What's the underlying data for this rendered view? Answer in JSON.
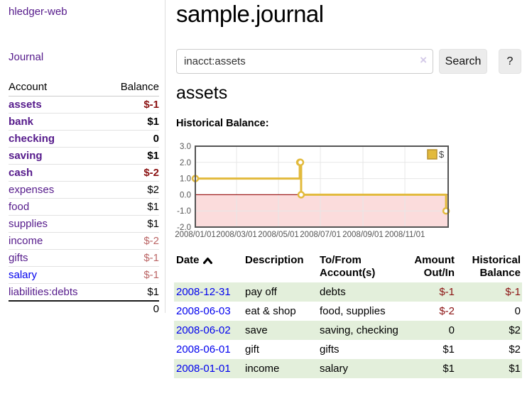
{
  "sidebar": {
    "brand": "hledger-web",
    "journal_link": "Journal",
    "accounts_table": {
      "headers": {
        "account": "Account",
        "balance": "Balance"
      },
      "rows": [
        {
          "account": "assets",
          "balance": "$-1",
          "level": 1,
          "bold": true,
          "balance_class": "neg-strong",
          "link_color": "purple"
        },
        {
          "account": "bank",
          "balance": "$1",
          "level": 2,
          "bold": true,
          "balance_class": "",
          "link_color": "purple"
        },
        {
          "account": "checking",
          "balance": "0",
          "level": 3,
          "bold": true,
          "balance_class": "",
          "link_color": "purple"
        },
        {
          "account": "saving",
          "balance": "$1",
          "level": 3,
          "bold": true,
          "balance_class": "",
          "link_color": "purple"
        },
        {
          "account": "cash",
          "balance": "$-2",
          "level": 2,
          "bold": true,
          "balance_class": "neg-strong",
          "link_color": "purple"
        },
        {
          "account": "expenses",
          "balance": "$2",
          "level": 1,
          "bold": false,
          "balance_class": "",
          "link_color": "purple"
        },
        {
          "account": "food",
          "balance": "$1",
          "level": 2,
          "bold": false,
          "balance_class": "",
          "link_color": "purple"
        },
        {
          "account": "supplies",
          "balance": "$1",
          "level": 2,
          "bold": false,
          "balance_class": "",
          "link_color": "purple"
        },
        {
          "account": "income",
          "balance": "$-2",
          "level": 1,
          "bold": false,
          "balance_class": "neg-soft",
          "link_color": "purple"
        },
        {
          "account": "gifts",
          "balance": "$-1",
          "level": 2,
          "bold": false,
          "balance_class": "neg-soft",
          "link_color": "purple"
        },
        {
          "account": "salary",
          "balance": "$-1",
          "level": 2,
          "bold": false,
          "balance_class": "neg-soft",
          "link_color": "blue"
        },
        {
          "account": "liabilities:debts",
          "balance": "$1",
          "level": 1,
          "bold": false,
          "balance_class": "",
          "link_color": "purple"
        }
      ],
      "total": "0"
    }
  },
  "main": {
    "title": "sample.journal",
    "search": {
      "value": "inacct:assets",
      "clear_icon": "×",
      "button": "Search",
      "help_button": "?"
    },
    "account_heading": "assets",
    "chart_label": "Historical Balance:"
  },
  "register": {
    "headers": {
      "date": "Date",
      "description": "Description",
      "tofrom1": "To/From",
      "tofrom2": "Account(s)",
      "amount1": "Amount",
      "amount2": "Out/In",
      "hist1": "Historical",
      "hist2": "Balance"
    },
    "sort_icon": "chevron-up",
    "rows": [
      {
        "date": "2008-12-31",
        "description": "pay off",
        "accounts": "debts",
        "amount": "$-1",
        "balance": "$-1",
        "amount_class": "neg",
        "balance_class": "neg"
      },
      {
        "date": "2008-06-03",
        "description": "eat & shop",
        "accounts": "food, supplies",
        "amount": "$-2",
        "balance": "0",
        "amount_class": "neg",
        "balance_class": ""
      },
      {
        "date": "2008-06-02",
        "description": "save",
        "accounts": "saving, checking",
        "amount": "0",
        "balance": "$2",
        "amount_class": "",
        "balance_class": ""
      },
      {
        "date": "2008-06-01",
        "description": "gift",
        "accounts": "gifts",
        "amount": "$1",
        "balance": "$2",
        "amount_class": "",
        "balance_class": ""
      },
      {
        "date": "2008-01-01",
        "description": "income",
        "accounts": "salary",
        "amount": "$1",
        "balance": "$1",
        "amount_class": "",
        "balance_class": ""
      }
    ]
  },
  "chart_data": {
    "type": "line",
    "step": true,
    "title": "Historical Balance:",
    "series": [
      {
        "name": "$",
        "points": [
          {
            "date": "2008-01-01",
            "value": 1
          },
          {
            "date": "2008-06-01",
            "value": 2
          },
          {
            "date": "2008-06-02",
            "value": 2
          },
          {
            "date": "2008-06-03",
            "value": 0
          },
          {
            "date": "2008-12-31",
            "value": -1
          }
        ]
      }
    ],
    "ylim": [
      -2,
      3
    ],
    "yticks": [
      "3.0",
      "2.0",
      "1.0",
      "0.0",
      "-1.0",
      "-2.0"
    ],
    "xticks": [
      "2008/01/01",
      "2008/03/01",
      "2008/05/01",
      "2008/07/01",
      "2008/09/01",
      "2008/11/01"
    ],
    "x_start": "2008/01/01",
    "x_span_days": 368,
    "grid": true,
    "legend": {
      "label": "$",
      "position": "top-right"
    },
    "line_color": "#e2ba3c",
    "negative_region_color": "#fbdcdc",
    "zero_line_color": "#a02020"
  },
  "colors": {
    "link_purple": "#551a8b",
    "link_blue": "#0000ee",
    "negative_strong": "#8b1212",
    "negative_soft": "#bb6565",
    "row_stripe_green": "#e3efdb",
    "chart_line_gold": "#e2ba3c",
    "chart_negative_pink": "#fbdcdc",
    "chart_zero_line": "#a02020"
  }
}
